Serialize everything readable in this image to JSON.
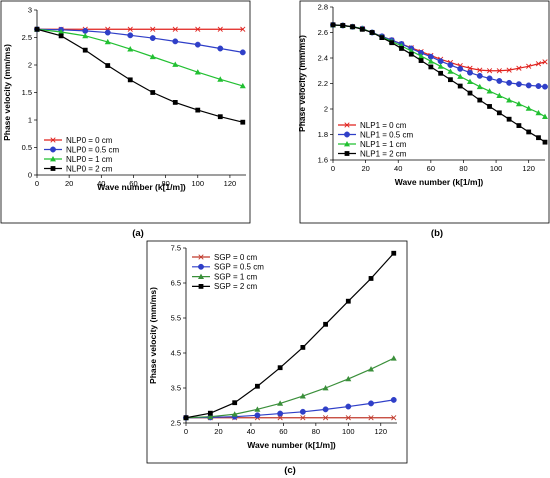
{
  "chart_data": [
    {
      "type": "line",
      "panel": "(a)",
      "xlabel": "Wave number (k[1/m])",
      "ylabel": "Phase velocity (mm/ms)",
      "xlim": [
        0,
        130
      ],
      "ylim": [
        0,
        3
      ],
      "xticks": [
        0,
        20,
        40,
        60,
        80,
        100,
        120
      ],
      "yticks": [
        0,
        0.5,
        1,
        1.5,
        2,
        2.5,
        3
      ],
      "yticklabels": [
        "0",
        "0.5",
        "1",
        "1.5",
        "2",
        "2.5",
        "3"
      ],
      "legend_position": "bottom-left",
      "series": [
        {
          "name": "NLP0 = 0 cm",
          "color": "#e0201c",
          "marker": "x",
          "marker_every": 9,
          "x": [
            0,
            15,
            30,
            44,
            58,
            72,
            86,
            100,
            114,
            128
          ],
          "y": [
            2.65,
            2.65,
            2.65,
            2.65,
            2.65,
            2.65,
            2.65,
            2.65,
            2.65,
            2.65
          ]
        },
        {
          "name": "NLP0 = 0.5 cm",
          "color": "#2f3fc8",
          "marker": "circle",
          "x": [
            0,
            15,
            30,
            44,
            58,
            72,
            86,
            100,
            114,
            128
          ],
          "y": [
            2.65,
            2.64,
            2.62,
            2.59,
            2.54,
            2.49,
            2.43,
            2.37,
            2.3,
            2.23
          ]
        },
        {
          "name": "NLP0 = 1 cm",
          "color": "#22c032",
          "marker": "triangle",
          "x": [
            0,
            15,
            30,
            44,
            58,
            72,
            86,
            100,
            114,
            128
          ],
          "y": [
            2.65,
            2.6,
            2.53,
            2.42,
            2.29,
            2.15,
            2.01,
            1.87,
            1.74,
            1.62
          ]
        },
        {
          "name": "NLP0 = 2 cm",
          "color": "#000000",
          "marker": "square",
          "x": [
            0,
            15,
            30,
            44,
            58,
            72,
            86,
            100,
            114,
            128
          ],
          "y": [
            2.65,
            2.53,
            2.27,
            1.99,
            1.73,
            1.5,
            1.32,
            1.18,
            1.06,
            0.96
          ]
        }
      ]
    },
    {
      "type": "line",
      "panel": "(b)",
      "xlabel": "Wave number (k[1/m])",
      "ylabel": "Phase velocity (mm/ms)",
      "xlim": [
        0,
        130
      ],
      "ylim": [
        1.6,
        2.8
      ],
      "xticks": [
        0,
        20,
        40,
        60,
        80,
        100,
        120
      ],
      "yticks": [
        1.6,
        1.8,
        2,
        2.2,
        2.4,
        2.6,
        2.8
      ],
      "yticklabels": [
        "1.6",
        "1.8",
        "2",
        "2.2",
        "2.4",
        "2.6",
        "2.8"
      ],
      "legend_position": "bottom-left",
      "series": [
        {
          "name": "NLP1 = 0 cm",
          "color": "#e0201c",
          "marker": "x",
          "marker_every": 4,
          "x": [
            0,
            6,
            12,
            18,
            24,
            30,
            36,
            42,
            48,
            54,
            60,
            66,
            72,
            78,
            84,
            90,
            96,
            102,
            108,
            114,
            120,
            126,
            130
          ],
          "y": [
            2.66,
            2.655,
            2.645,
            2.63,
            2.6,
            2.57,
            2.54,
            2.51,
            2.48,
            2.45,
            2.42,
            2.39,
            2.365,
            2.34,
            2.32,
            2.305,
            2.3,
            2.3,
            2.305,
            2.32,
            2.335,
            2.355,
            2.37
          ]
        },
        {
          "name": "NLP1 = 0.5 cm",
          "color": "#2f3fc8",
          "marker": "circle",
          "x": [
            0,
            6,
            12,
            18,
            24,
            30,
            36,
            42,
            48,
            54,
            60,
            66,
            72,
            78,
            84,
            90,
            96,
            102,
            108,
            114,
            120,
            126,
            130
          ],
          "y": [
            2.66,
            2.655,
            2.645,
            2.63,
            2.6,
            2.57,
            2.54,
            2.51,
            2.475,
            2.44,
            2.41,
            2.375,
            2.345,
            2.315,
            2.285,
            2.26,
            2.24,
            2.22,
            2.205,
            2.195,
            2.185,
            2.18,
            2.175
          ]
        },
        {
          "name": "NLP1 = 1 cm",
          "color": "#22c032",
          "marker": "triangle",
          "x": [
            0,
            6,
            12,
            18,
            24,
            30,
            36,
            42,
            48,
            54,
            60,
            66,
            72,
            78,
            84,
            90,
            96,
            102,
            108,
            114,
            120,
            126,
            130
          ],
          "y": [
            2.66,
            2.655,
            2.645,
            2.63,
            2.6,
            2.565,
            2.53,
            2.495,
            2.455,
            2.415,
            2.375,
            2.335,
            2.295,
            2.255,
            2.215,
            2.175,
            2.14,
            2.105,
            2.07,
            2.04,
            2.005,
            1.97,
            1.94
          ]
        },
        {
          "name": "NLP1 = 2 cm",
          "color": "#000000",
          "marker": "square",
          "x": [
            0,
            6,
            12,
            18,
            24,
            30,
            36,
            42,
            48,
            54,
            60,
            66,
            72,
            78,
            84,
            90,
            96,
            102,
            108,
            114,
            120,
            126,
            130
          ],
          "y": [
            2.66,
            2.655,
            2.645,
            2.625,
            2.6,
            2.56,
            2.52,
            2.475,
            2.43,
            2.38,
            2.33,
            2.28,
            2.23,
            2.18,
            2.125,
            2.07,
            2.02,
            1.97,
            1.92,
            1.87,
            1.82,
            1.775,
            1.74
          ]
        }
      ]
    },
    {
      "type": "line",
      "panel": "(c)",
      "xlabel": "Wave number (k[1/m])",
      "ylabel": "Phase velocity (mm/ms)",
      "xlim": [
        0,
        130
      ],
      "ylim": [
        2.5,
        7.5
      ],
      "xticks": [
        0,
        20,
        40,
        60,
        80,
        100,
        120
      ],
      "yticks": [
        2.5,
        3.5,
        4.5,
        5.5,
        6.5,
        7.5
      ],
      "yticklabels": [
        "2.5",
        "3.5",
        "4.5",
        "5.5",
        "6.5",
        "7.5"
      ],
      "legend_position": "top-left",
      "series": [
        {
          "name": "SGP = 0 cm",
          "color": "#c0392b",
          "marker": "x",
          "marker_every": 9,
          "x": [
            0,
            15,
            30,
            44,
            58,
            72,
            86,
            100,
            114,
            128
          ],
          "y": [
            2.65,
            2.65,
            2.65,
            2.65,
            2.65,
            2.65,
            2.65,
            2.65,
            2.65,
            2.65
          ]
        },
        {
          "name": "SGP = 0.5 cm",
          "color": "#2f3fc8",
          "marker": "circle",
          "x": [
            0,
            15,
            30,
            44,
            58,
            72,
            86,
            100,
            114,
            128
          ],
          "y": [
            2.65,
            2.66,
            2.68,
            2.72,
            2.77,
            2.82,
            2.89,
            2.97,
            3.06,
            3.16
          ]
        },
        {
          "name": "SGP = 1 cm",
          "color": "#3a8f3a",
          "marker": "triangle",
          "x": [
            0,
            15,
            30,
            44,
            58,
            72,
            86,
            100,
            114,
            128
          ],
          "y": [
            2.65,
            2.68,
            2.75,
            2.89,
            3.06,
            3.27,
            3.5,
            3.76,
            4.04,
            4.35
          ]
        },
        {
          "name": "SGP = 2 cm",
          "color": "#000000",
          "marker": "square",
          "x": [
            0,
            15,
            30,
            44,
            58,
            72,
            86,
            100,
            114,
            128
          ],
          "y": [
            2.65,
            2.78,
            3.08,
            3.55,
            4.08,
            4.66,
            5.32,
            5.98,
            6.63,
            7.35
          ]
        }
      ]
    }
  ]
}
